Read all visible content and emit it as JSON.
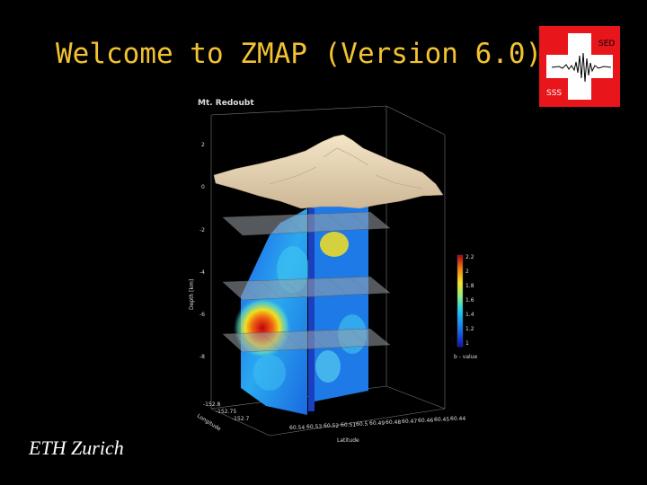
{
  "slide": {
    "title": "Welcome to ZMAP (Version 6.0)",
    "footer": "ETH Zurich"
  },
  "logo": {
    "top_label": "SED",
    "bottom_label": "SSS"
  },
  "figure": {
    "title": "Mt. Redoubt",
    "z_axis_label": "Depth [km]",
    "z_ticks": [
      "2",
      "0",
      "-2",
      "-4",
      "-6",
      "-8"
    ],
    "longitude_label": "Longitude",
    "longitude_ticks": [
      "-152.8",
      "-152.75",
      "-152.7"
    ],
    "latitude_label": "Latitude",
    "latitude_ticks": [
      "60.54",
      "60.53",
      "60.52",
      "60.51",
      "60.5",
      "60.49",
      "60.48",
      "60.47",
      "60.46",
      "60.45",
      "60.44"
    ],
    "colorbar_label": "b - value",
    "colorbar_ticks": [
      "2.2",
      "2",
      "1.8",
      "1.6",
      "1.4",
      "1.2",
      "1"
    ]
  },
  "colors": {
    "title": "#f2c230",
    "logo_red": "#e8151b",
    "background": "#000000"
  }
}
